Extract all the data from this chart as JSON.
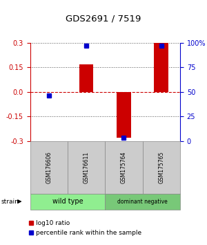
{
  "title": "GDS2691 / 7519",
  "samples": [
    "GSM176606",
    "GSM176611",
    "GSM175764",
    "GSM175765"
  ],
  "log10_ratio": [
    0.0,
    0.17,
    -0.28,
    0.3
  ],
  "percentile_rank": [
    46,
    97,
    3,
    97
  ],
  "groups": [
    {
      "label": "wild type",
      "samples": [
        0,
        1
      ],
      "color": "#90EE90"
    },
    {
      "label": "dominant negative",
      "samples": [
        2,
        3
      ],
      "color": "#78C878"
    }
  ],
  "ylim": [
    -0.3,
    0.3
  ],
  "yticks_left": [
    -0.3,
    -0.15,
    0.0,
    0.15,
    0.3
  ],
  "yticks_right": [
    0,
    25,
    50,
    75,
    100
  ],
  "bar_color": "#CC0000",
  "dot_color": "#0000CC",
  "dot_size": 5,
  "bar_width": 0.38,
  "strain_label": "strain",
  "legend_ratio_label": "log10 ratio",
  "legend_pct_label": "percentile rank within the sample",
  "background_color": "#ffffff",
  "sample_box_color": "#CCCCCC",
  "sample_box_edge": "#888888"
}
